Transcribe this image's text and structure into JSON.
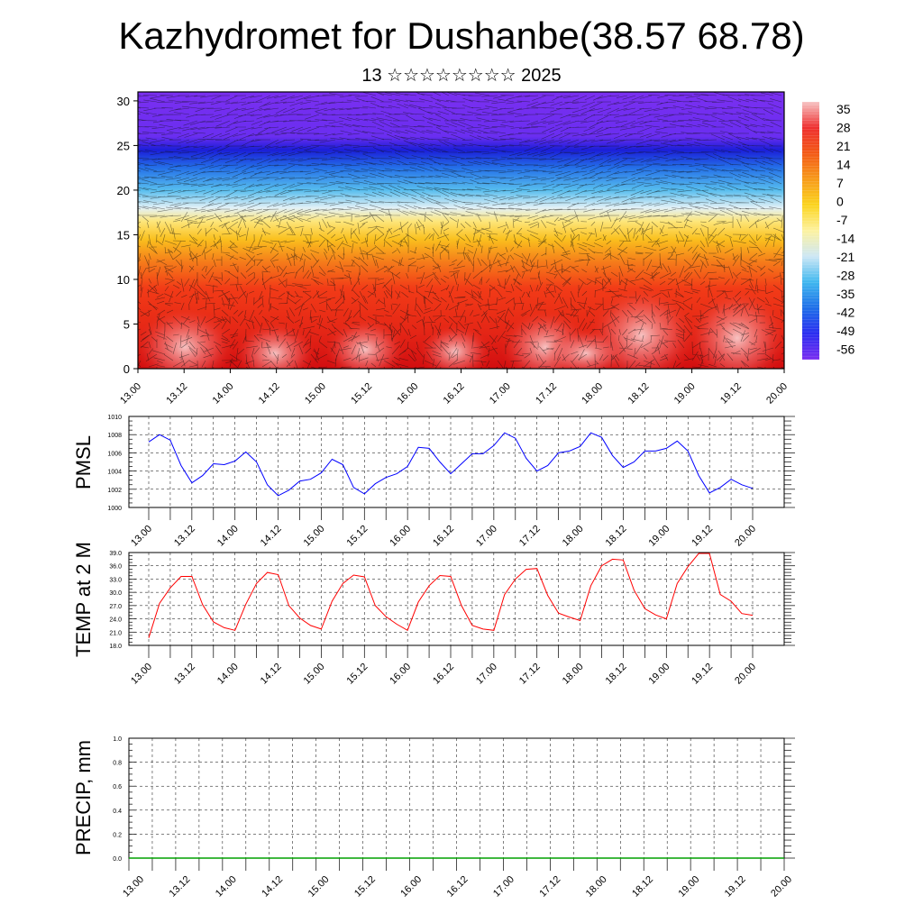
{
  "header": {
    "title": "Kazhydromet for Dushanbe(38.57 68.78)",
    "subtitle": "13 ☆☆☆☆☆☆☆☆ 2025"
  },
  "chart_data": [
    {
      "type": "heatmap",
      "title": "",
      "xlabel": "",
      "ylabel": "",
      "x_ticks": [
        "13.00",
        "13.12",
        "14.00",
        "14.12",
        "15.00",
        "15.12",
        "16.00",
        "16.12",
        "17.00",
        "17.12",
        "18.00",
        "18.12",
        "19.00",
        "19.12",
        "20.00"
      ],
      "y_ticks": [
        0,
        5,
        10,
        15,
        20,
        25,
        30
      ],
      "ylim": [
        0,
        31
      ],
      "colorbar": {
        "labels": [
          "35",
          "28",
          "21",
          "14",
          "7",
          "0",
          "-7",
          "-14",
          "-21",
          "-28",
          "-35",
          "-42",
          "-49",
          "-56"
        ],
        "colors": [
          "#f7c4c4",
          "#ee2f2f",
          "#f35a16",
          "#f79a1a",
          "#fbd41e",
          "#fdf2a0",
          "#cde7f5",
          "#3fb7ef",
          "#1e6ee8",
          "#2a2df0",
          "#7b2ff0"
        ]
      },
      "overlay": "wind vectors",
      "vertical_levels": [
        {
          "level": 0,
          "color": "#d20e10"
        },
        {
          "level": 4,
          "color": "#e42516"
        },
        {
          "level": 9,
          "color": "#f23b17"
        },
        {
          "level": 12,
          "color": "#f57d1a"
        },
        {
          "level": 14.5,
          "color": "#fac01e"
        },
        {
          "level": 16.5,
          "color": "#fde67a"
        },
        {
          "level": 18,
          "color": "#e3f1f6"
        },
        {
          "level": 20,
          "color": "#57bdee"
        },
        {
          "level": 22.5,
          "color": "#2470e8"
        },
        {
          "level": 24.5,
          "color": "#1b1ed8"
        },
        {
          "level": 26,
          "color": "#6a2ef0"
        },
        {
          "level": 31,
          "color": "#7a2ff0"
        }
      ]
    },
    {
      "type": "line",
      "ylabel": "PMSL",
      "ylim": [
        1000,
        1010
      ],
      "y_ticks": [
        "1000",
        "1002",
        "1004",
        "1006",
        "1008",
        "1010"
      ],
      "x_ticks": [
        "13.00",
        "13.12",
        "14.00",
        "14.12",
        "15.00",
        "15.12",
        "16.00",
        "16.12",
        "17.00",
        "17.12",
        "18.00",
        "18.12",
        "19.00",
        "19.12",
        "20.00"
      ],
      "color": "#0000ff",
      "series": [
        {
          "x": [
            0,
            3,
            6,
            9,
            12,
            15,
            18,
            21,
            24,
            27,
            30,
            33,
            36,
            39,
            42,
            45,
            48,
            51,
            54,
            57,
            60,
            63,
            66,
            69,
            72,
            75,
            78,
            81,
            84,
            87,
            90,
            93,
            96,
            99,
            102,
            105,
            108,
            111,
            114,
            117,
            120,
            123,
            126,
            129,
            132,
            135,
            138,
            141,
            144,
            147,
            150,
            153,
            156,
            159,
            162,
            165,
            168
          ],
          "values": [
            1007.2,
            1008.0,
            1007.4,
            1004.6,
            1002.7,
            1003.5,
            1004.8,
            1004.7,
            1005.1,
            1006.1,
            1005.0,
            1002.5,
            1001.3,
            1001.9,
            1002.9,
            1003.1,
            1003.8,
            1005.3,
            1004.7,
            1002.2,
            1001.5,
            1002.6,
            1003.3,
            1003.7,
            1004.5,
            1006.6,
            1006.5,
            1005.0,
            1003.7,
            1004.8,
            1005.9,
            1005.9,
            1006.8,
            1008.2,
            1007.6,
            1005.4,
            1004.0,
            1004.6,
            1006.0,
            1006.2,
            1006.7,
            1008.2,
            1007.7,
            1005.7,
            1004.4,
            1005.0,
            1006.2,
            1006.2,
            1006.5,
            1007.3,
            1006.2,
            1003.5,
            1001.6,
            1002.2,
            1003.1,
            1002.5,
            1002.1
          ]
        }
      ]
    },
    {
      "type": "line",
      "ylabel": "TEMP at 2 M",
      "ylim": [
        18,
        39
      ],
      "y_ticks": [
        "18.0",
        "21.0",
        "24.0",
        "27.0",
        "30.0",
        "33.0",
        "36.0",
        "39.0"
      ],
      "x_ticks": [
        "13.00",
        "13.12",
        "14.00",
        "14.12",
        "15.00",
        "15.12",
        "16.00",
        "16.12",
        "17.00",
        "17.12",
        "18.00",
        "18.12",
        "19.00",
        "19.12",
        "20.00"
      ],
      "color": "#ff0000",
      "series": [
        {
          "x": [
            0,
            3,
            6,
            9,
            12,
            15,
            18,
            21,
            24,
            27,
            30,
            33,
            36,
            39,
            42,
            45,
            48,
            51,
            54,
            57,
            60,
            63,
            66,
            69,
            72,
            75,
            78,
            81,
            84,
            87,
            90,
            93,
            96,
            99,
            102,
            105,
            108,
            111,
            114,
            117,
            120,
            123,
            126,
            129,
            132,
            135,
            138,
            141,
            144,
            147,
            150,
            153,
            156,
            159,
            162,
            165,
            168
          ],
          "values": [
            19.7,
            27.5,
            31.0,
            33.6,
            33.6,
            27.2,
            23.3,
            22.0,
            21.4,
            27.3,
            32.0,
            34.5,
            34.0,
            27.0,
            24.2,
            22.5,
            21.7,
            28.0,
            32.0,
            33.9,
            33.5,
            27.0,
            24.5,
            22.8,
            21.4,
            27.8,
            31.5,
            33.8,
            33.6,
            27.0,
            22.5,
            21.7,
            21.4,
            29.5,
            33.0,
            35.2,
            35.4,
            29.3,
            25.3,
            24.4,
            23.6,
            31.5,
            36.0,
            37.5,
            37.3,
            30.5,
            26.3,
            24.9,
            24.0,
            32.0,
            35.8,
            38.8,
            38.8,
            29.5,
            28.0,
            25.2,
            24.8
          ]
        }
      ]
    },
    {
      "type": "line",
      "ylabel": "PRECIP, mm",
      "ylim": [
        0,
        1
      ],
      "y_ticks": [
        "0.0",
        "0.2",
        "0.4",
        "0.6",
        "0.8",
        "1.0"
      ],
      "x_ticks": [
        "13.00",
        "13.12",
        "14.00",
        "14.12",
        "15.00",
        "15.12",
        "16.00",
        "16.12",
        "17.00",
        "17.12",
        "18.00",
        "18.12",
        "19.00",
        "19.12",
        "20.00"
      ],
      "color": "#00a000",
      "series": [
        {
          "x": [
            0,
            168
          ],
          "values": [
            0,
            0
          ]
        }
      ]
    }
  ]
}
